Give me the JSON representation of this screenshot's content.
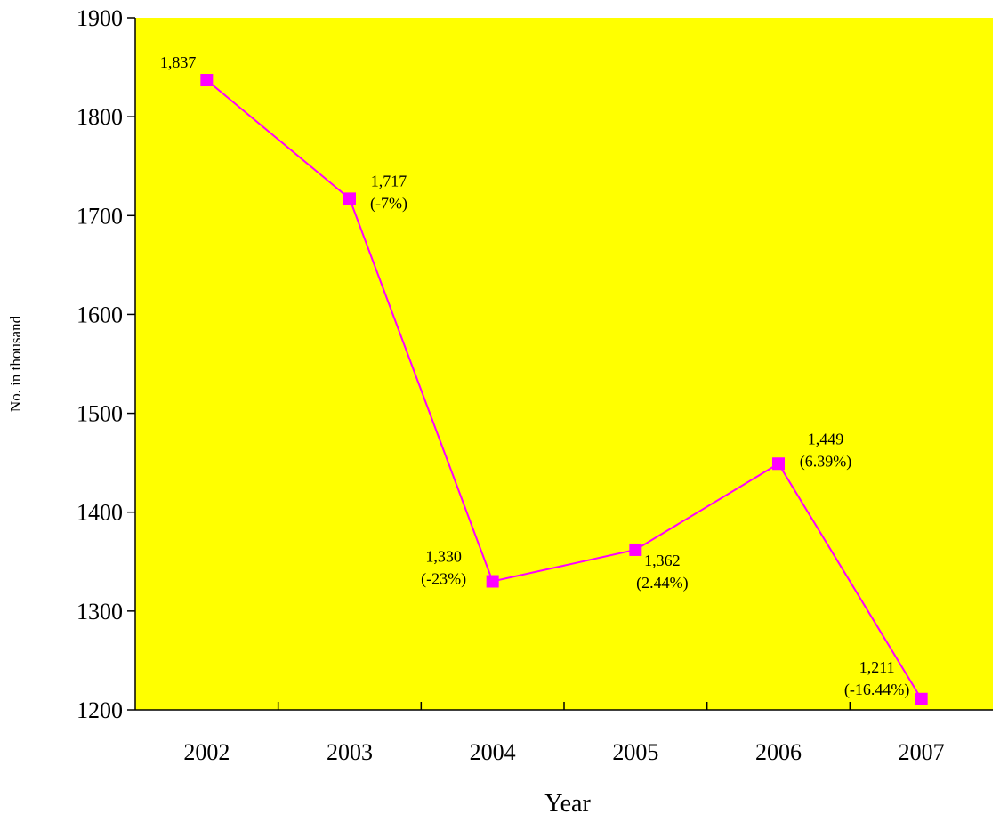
{
  "chart_data": {
    "type": "line",
    "title": "",
    "xlabel": "Year",
    "ylabel": "No. in thousand",
    "categories": [
      "2002",
      "2003",
      "2004",
      "2005",
      "2006",
      "2007"
    ],
    "series": [
      {
        "values": [
          1837,
          1717,
          1330,
          1362,
          1449,
          1211
        ],
        "data_labels": [
          "1,837",
          "1,717",
          "1,330",
          "1,362",
          "1,449",
          "1,211"
        ],
        "change_labels": [
          "",
          "(-7%)",
          "(-23%)",
          "(2.44%)",
          "(6.39%)",
          "(-16.44%)"
        ]
      }
    ],
    "ylim": [
      1200,
      1900
    ],
    "yticks": [
      "1200",
      "1300",
      "1400",
      "1500",
      "1600",
      "1700",
      "1800",
      "1900"
    ],
    "grid": false,
    "legend": "none"
  },
  "colors": {
    "plot_background": "#ffff00",
    "series_line": "#ff00ff",
    "marker": "#ff00ff",
    "axis": "#000000"
  }
}
